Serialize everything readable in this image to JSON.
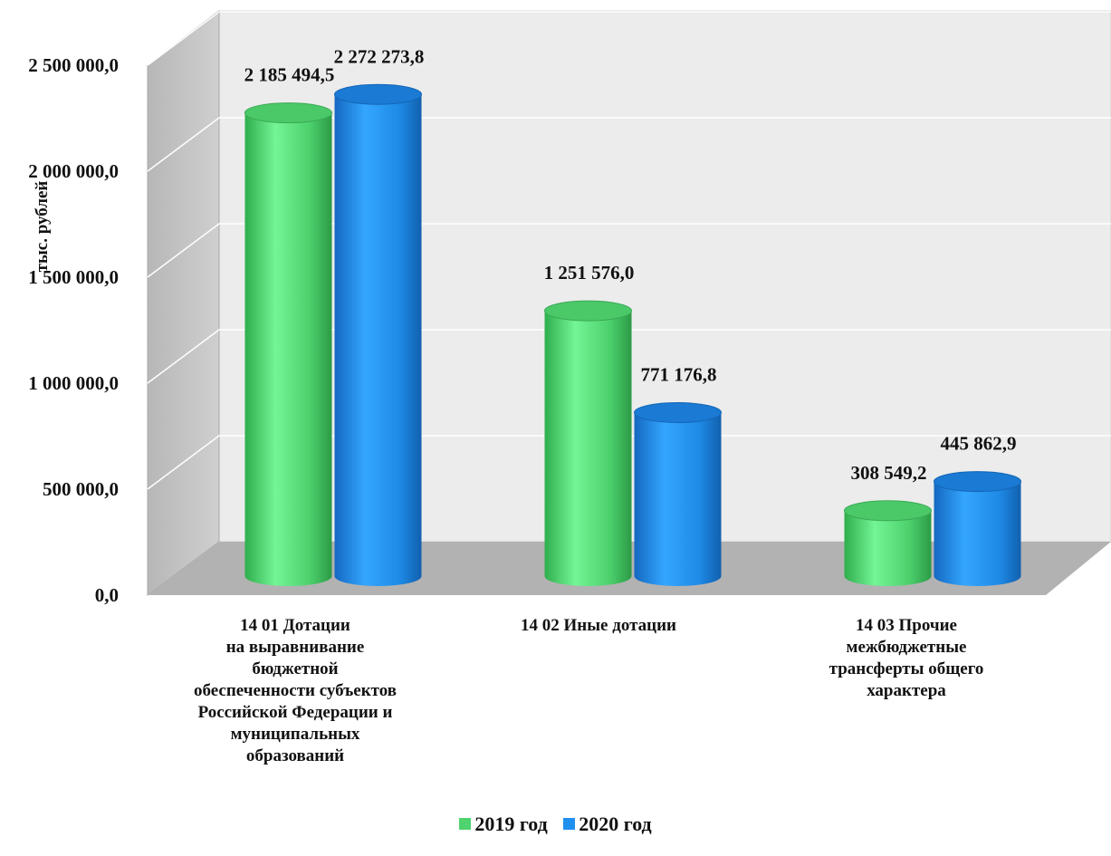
{
  "chart_data": {
    "type": "bar",
    "title": "",
    "xlabel": "",
    "ylabel": "тыс. рублей",
    "ylim": [
      0,
      2500000
    ],
    "yticks": [
      "0,0",
      "500 000,0",
      "1 000 000,0",
      "1 500 000,0",
      "2 000 000,0",
      "2 500 000,0"
    ],
    "grid": true,
    "legend_position": "bottom",
    "categories": [
      "14 01 Дотации на выравнивание бюджетной обеспеченности субъектов Российской Федерации и муниципальных образований",
      "14 02 Иные дотации",
      "14 03 Прочие межбюджетные трансферты общего характера"
    ],
    "category_lines": [
      [
        "14 01 Дотации",
        "на выравнивание",
        "бюджетной",
        "обеспеченности субъектов",
        "Российской Федерации и",
        "муниципальных",
        "образований"
      ],
      [
        "14 02 Иные дотации"
      ],
      [
        "14 03 Прочие",
        "межбюджетные",
        "трансферты общего",
        "характера"
      ]
    ],
    "series": [
      {
        "name": "2019 год",
        "color": "#4ed36e",
        "values": [
          2185494.5,
          1251576.0,
          308549.2
        ],
        "labels": [
          "2 185 494,5",
          "1 251 576,0",
          "308 549,2"
        ]
      },
      {
        "name": "2020 год",
        "color": "#1f8ff0",
        "values": [
          2272273.8,
          771176.8,
          445862.9
        ],
        "labels": [
          "2 272 273,8",
          "771 176,8",
          "445 862,9"
        ]
      }
    ]
  }
}
